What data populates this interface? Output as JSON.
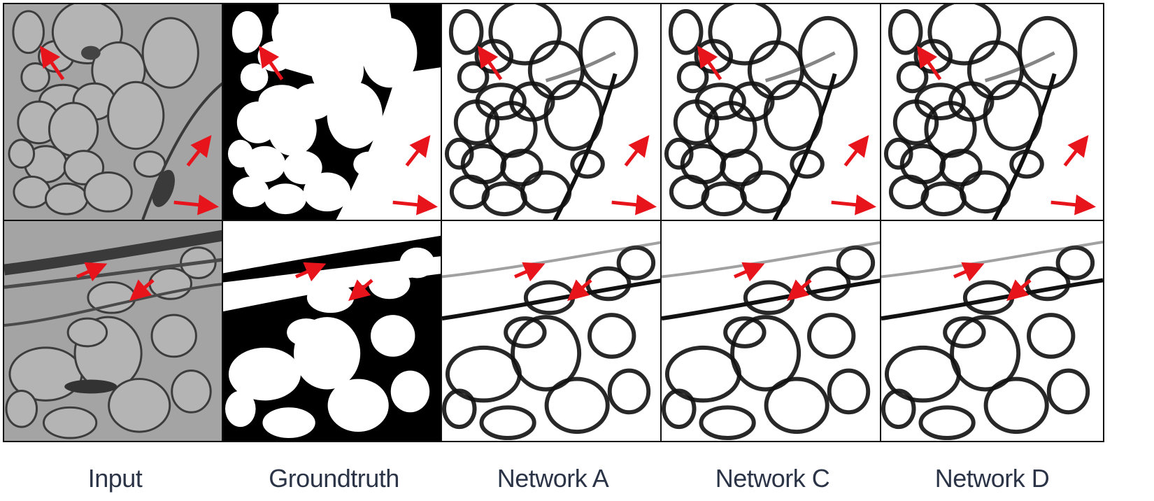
{
  "figure": {
    "columns": [
      {
        "label": "Input",
        "kind": "em-grayscale"
      },
      {
        "label": "Groundtruth",
        "kind": "binary-membrane"
      },
      {
        "label": "Network A",
        "kind": "probability-map"
      },
      {
        "label": "Network C",
        "kind": "probability-map"
      },
      {
        "label": "Network D",
        "kind": "probability-map"
      }
    ],
    "rows": [
      {
        "id": "row-1",
        "arrow_count": 3
      },
      {
        "id": "row-2",
        "arrow_count": 2
      }
    ],
    "colors": {
      "arrow": "#e8141b",
      "label_text": "#2b3447",
      "panel_border": "#111111",
      "em_background": "#a9a9a9",
      "membrane": "#000000"
    }
  }
}
